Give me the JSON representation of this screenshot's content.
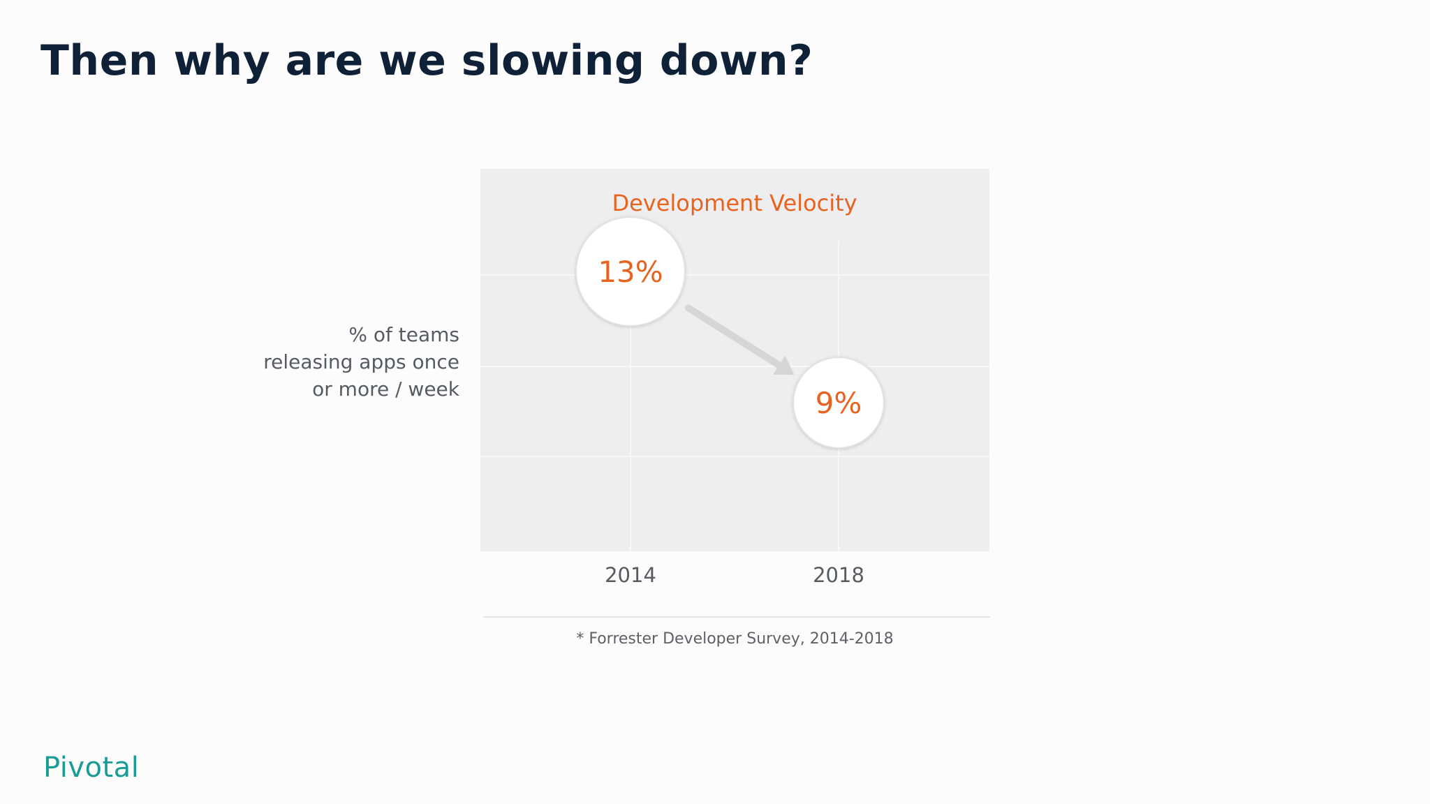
{
  "slide": {
    "title": "Then why are we slowing down?"
  },
  "chart_data": {
    "type": "scatter",
    "title": "Development Velocity",
    "ylabel_lines": [
      "% of teams",
      "releasing apps once",
      "or more / week"
    ],
    "categories": [
      "2014",
      "2018"
    ],
    "values": [
      13,
      9
    ],
    "data_labels": [
      "13%",
      "9%"
    ],
    "ylim": [
      0,
      20
    ],
    "grid": true,
    "annotation": "arrow from 13% to 9%",
    "footnote": "* Forrester Developer Survey, 2014-2018"
  },
  "colors": {
    "title": "#0f2137",
    "chart_title": "#e8631f",
    "data_label": "#e8631f",
    "plot_background": "#eeedef",
    "logo": "#1a9c96"
  },
  "logo": {
    "text": "Pivotal"
  }
}
